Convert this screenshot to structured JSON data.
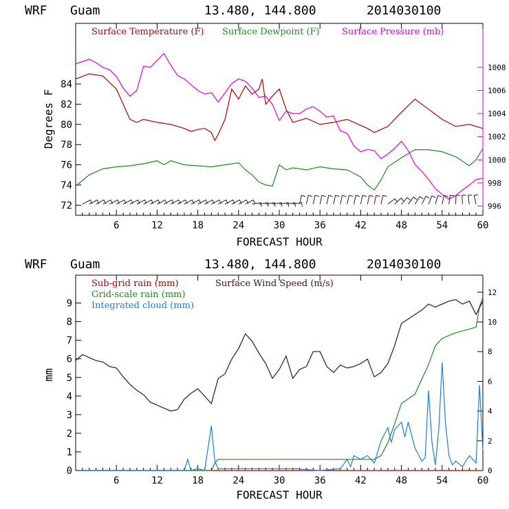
{
  "colors": {
    "temperature": "#b40000",
    "dewpoint": "#1e8a1e",
    "pressure": "#e000e0",
    "subgrid_rain": "#b40000",
    "gridscale_rain": "#1e8a1e",
    "cloud": "#1a7fd6",
    "wind_speed": "#3a0a3a",
    "wind_barb": "#3a0a3a"
  },
  "chart_data": [
    {
      "type": "line",
      "header": {
        "model": "WRF",
        "site": "Guam",
        "coords": "13.480, 144.800",
        "init": "2014030100"
      },
      "xlabel": "FORECAST HOUR",
      "xlim": [
        0,
        60
      ],
      "xticks": [
        "6",
        "12",
        "18",
        "24",
        "30",
        "36",
        "42",
        "48",
        "54",
        "60"
      ],
      "ylabel": "Degrees F",
      "ylim": [
        71,
        90
      ],
      "yticks": [
        "72",
        "74",
        "76",
        "78",
        "80",
        "82",
        "84"
      ],
      "y2lim": [
        995.2,
        1011.8
      ],
      "y2ticks": [
        "996",
        "998",
        "1000",
        "1002",
        "1004",
        "1006",
        "1008"
      ],
      "legend": [
        "Surface Temperature (F)",
        "Surface Dewpoint (F)",
        "Surface Pressure (mb)"
      ],
      "wind_barbs": {
        "label": "Surface wind barbs (hourly)",
        "y": 72.1
      },
      "series": [
        {
          "name": "Surface Temperature (F)",
          "axis": "left",
          "x": [
            0,
            2,
            4,
            6,
            7,
            8,
            9,
            10,
            12,
            14,
            16,
            17,
            18,
            19,
            20,
            20.5,
            21,
            22,
            23,
            24,
            25,
            26,
            27,
            27.5,
            28,
            29,
            30,
            31,
            32,
            34,
            36,
            38,
            40,
            42,
            43,
            44,
            46,
            48,
            50,
            52,
            54,
            56,
            58,
            60
          ],
          "y": [
            84.5,
            85.0,
            84.8,
            83.5,
            82.0,
            80.5,
            80.2,
            80.5,
            80.2,
            80.0,
            79.6,
            79.3,
            79.5,
            79.6,
            79.2,
            78.4,
            79.0,
            80.5,
            83.5,
            82.5,
            83.8,
            83.0,
            83.5,
            84.5,
            82.0,
            82.8,
            83.5,
            81.5,
            80.2,
            80.6,
            80.0,
            80.2,
            80.5,
            79.9,
            79.6,
            79.2,
            79.8,
            81.2,
            82.5,
            81.5,
            80.5,
            79.8,
            80.0,
            79.6
          ]
        },
        {
          "name": "Surface Dewpoint (F)",
          "axis": "left",
          "x": [
            0,
            2,
            4,
            6,
            8,
            10,
            12,
            13,
            14,
            16,
            18,
            20,
            22,
            24,
            25,
            26,
            27,
            28,
            29,
            30,
            31,
            32,
            34,
            36,
            38,
            40,
            42,
            43,
            44,
            45,
            46,
            48,
            50,
            52,
            54,
            56,
            58,
            59,
            60
          ],
          "y": [
            73.9,
            75.0,
            75.6,
            75.8,
            75.9,
            76.1,
            76.4,
            76.0,
            76.4,
            76.0,
            75.9,
            75.8,
            76.0,
            76.2,
            75.5,
            75.0,
            74.3,
            74.0,
            73.9,
            76.0,
            75.5,
            75.7,
            75.5,
            75.8,
            75.6,
            75.5,
            74.8,
            74.0,
            73.5,
            74.5,
            75.8,
            76.7,
            77.5,
            77.5,
            77.3,
            76.8,
            75.9,
            76.5,
            77.6
          ]
        },
        {
          "name": "Surface Pressure (mb)",
          "axis": "right",
          "x": [
            0,
            1,
            2,
            3,
            4,
            5,
            6,
            7,
            8,
            9,
            10,
            11,
            12,
            13,
            14,
            15,
            16,
            17,
            18,
            19,
            20,
            21,
            22,
            23,
            24,
            25,
            26,
            27,
            28,
            29,
            30,
            31,
            32,
            33,
            34,
            35,
            36,
            37,
            38,
            39,
            40,
            41,
            42,
            43,
            44,
            45,
            46,
            47,
            48,
            49,
            50,
            51,
            52,
            53,
            54,
            55,
            56,
            57,
            58,
            59,
            60
          ],
          "y": [
            1008.3,
            1008.5,
            1008.7,
            1008.4,
            1008.0,
            1007.8,
            1007.2,
            1006.2,
            1005.5,
            1006.0,
            1008.1,
            1008.0,
            1008.6,
            1009.2,
            1008.2,
            1007.3,
            1007.0,
            1006.5,
            1006.0,
            1005.7,
            1005.8,
            1005.0,
            1005.8,
            1006.6,
            1007.0,
            1006.8,
            1006.2,
            1005.4,
            1005.5,
            1004.8,
            1003.4,
            1004.2,
            1004.0,
            1004.0,
            1004.4,
            1004.6,
            1004.2,
            1003.7,
            1003.8,
            1002.5,
            1002.3,
            1001.2,
            1000.7,
            1000.9,
            1000.8,
            1000.1,
            1000.5,
            1001.0,
            1001.6,
            1000.8,
            999.6,
            999.0,
            998.3,
            997.5,
            997.0,
            996.6,
            996.9,
            997.4,
            997.8,
            998.3,
            998.4
          ]
        }
      ]
    },
    {
      "type": "line",
      "header": {
        "model": "WRF",
        "site": "Guam",
        "coords": "13.480, 144.800",
        "init": "2014030100"
      },
      "xlabel": "FORECAST HOUR",
      "xlim": [
        0,
        60
      ],
      "xticks": [
        "6",
        "12",
        "18",
        "24",
        "30",
        "36",
        "42",
        "48",
        "54",
        "60"
      ],
      "ylabel": "mm",
      "ylim": [
        0,
        10.5
      ],
      "yticks": [
        "0",
        "1",
        "2",
        "3",
        "4",
        "5",
        "6",
        "7",
        "8",
        "9"
      ],
      "y2lim": [
        0,
        13.15
      ],
      "y2ticks": [
        "0",
        "2",
        "4",
        "6",
        "8",
        "10",
        "12"
      ],
      "legend": [
        "Sub-grid rain (mm)",
        "Grid-scale rain (mm)",
        "Integrated cloud (mm)",
        "Surface Wind Speed (m/s)"
      ],
      "series": [
        {
          "name": "Sub-grid rain (mm)",
          "axis": "left",
          "x": [
            0,
            60
          ],
          "y": [
            0,
            0
          ]
        },
        {
          "name": "Grid-scale rain (mm)",
          "axis": "left",
          "x": [
            0,
            16,
            20,
            20.5,
            21,
            30,
            44,
            45,
            46,
            47,
            48,
            50,
            52,
            53,
            54,
            56,
            58,
            59,
            59.5,
            60
          ],
          "y": [
            0,
            0,
            0,
            0.4,
            0.6,
            0.6,
            0.6,
            0.8,
            1.5,
            2.5,
            3.6,
            4.1,
            5.7,
            6.7,
            7.1,
            7.4,
            7.6,
            7.7,
            8.8,
            9.3
          ]
        },
        {
          "name": "Integrated cloud (mm)",
          "axis": "left",
          "x": [
            0,
            15,
            16,
            16.5,
            17,
            18,
            19,
            19.5,
            20,
            20.5,
            21,
            24,
            28,
            32,
            36,
            39,
            40,
            40.5,
            41,
            42,
            43,
            44,
            45,
            46,
            46.5,
            47,
            48,
            48.5,
            49,
            50,
            51,
            51.5,
            52,
            52.5,
            53,
            53.5,
            54,
            54.5,
            55,
            55.5,
            56,
            57,
            58,
            59,
            59.5,
            60
          ],
          "y": [
            0,
            0,
            0,
            0.6,
            0,
            0.1,
            0,
            1.2,
            2.4,
            0.5,
            0.1,
            0.1,
            0.1,
            0.1,
            0,
            0.1,
            0.6,
            0.2,
            0.8,
            0.6,
            0.8,
            0.4,
            1.6,
            2.3,
            1.5,
            2.2,
            2.6,
            1.8,
            2.6,
            1.2,
            0.5,
            0.7,
            4.3,
            1.5,
            0.3,
            2.2,
            5.8,
            2.5,
            0.8,
            0.3,
            0.5,
            0.2,
            0.8,
            0.4,
            4.6,
            1.1
          ]
        },
        {
          "name": "Surface Wind Speed (m/s)",
          "axis": "right",
          "x": [
            0,
            1,
            2,
            3,
            4,
            5,
            6,
            7,
            8,
            9,
            10,
            11,
            12,
            13,
            14,
            15,
            16,
            17,
            18,
            19,
            20,
            21,
            22,
            23,
            24,
            25,
            26,
            27,
            28,
            29,
            30,
            31,
            32,
            33,
            34,
            35,
            36,
            37,
            38,
            39,
            40,
            41,
            42,
            43,
            44,
            45,
            46,
            47,
            48,
            49,
            50,
            51,
            52,
            53,
            54,
            55,
            56,
            57,
            58,
            59,
            60
          ],
          "y": [
            7.4,
            7.8,
            7.6,
            7.4,
            7.3,
            7.0,
            6.9,
            6.3,
            5.8,
            5.4,
            5.1,
            4.6,
            4.4,
            4.2,
            4.0,
            4.1,
            4.8,
            5.2,
            5.5,
            5.0,
            4.5,
            6.2,
            6.5,
            7.5,
            8.2,
            9.2,
            8.7,
            7.9,
            7.2,
            6.2,
            6.8,
            7.7,
            6.2,
            6.8,
            7.0,
            8.0,
            8.0,
            7.0,
            6.6,
            7.1,
            6.9,
            7.0,
            7.2,
            7.5,
            6.3,
            6.6,
            7.2,
            8.4,
            9.9,
            10.2,
            10.5,
            10.8,
            11.2,
            11.0,
            11.2,
            11.4,
            11.5,
            11.2,
            11.4,
            10.5,
            11.4
          ]
        }
      ]
    }
  ]
}
